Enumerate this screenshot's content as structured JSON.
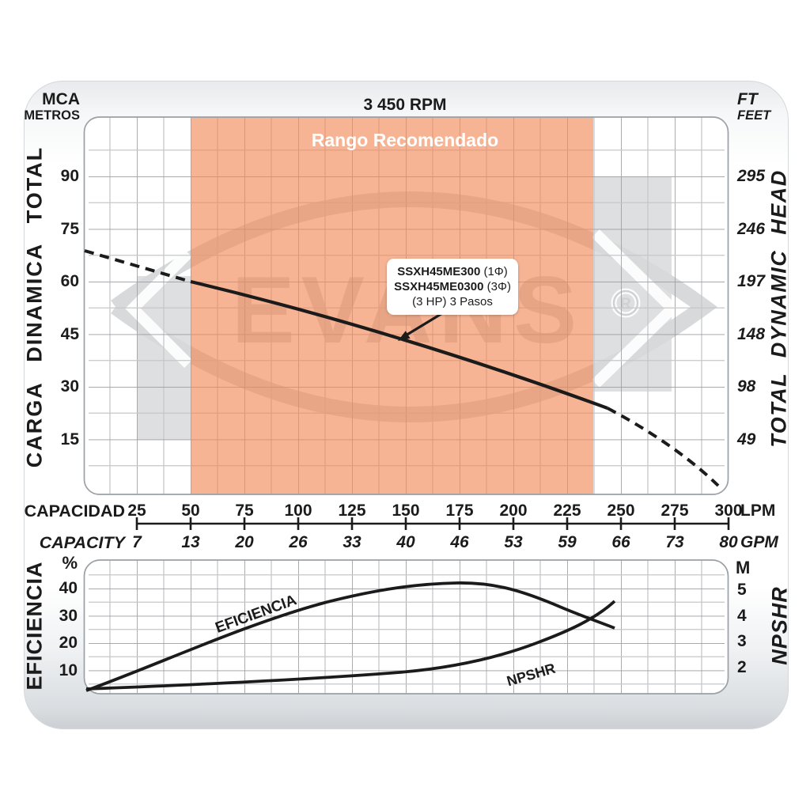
{
  "panel": {
    "speed_label": "3 450 RPM"
  },
  "watermark": {
    "text": "EVANS",
    "reg": "R"
  },
  "top_chart": {
    "unit_top_left_1": "MCA",
    "unit_top_left_2": "METROS",
    "unit_top_right_1": "FT",
    "unit_top_right_2": "FEET",
    "axis_left_label": "CARGA DINAMICA TOTAL",
    "axis_right_label": "TOTAL DYNAMIC HEAD",
    "recommended_band_label": "Rango Recomendado",
    "y_left_labels": [
      "90",
      "75",
      "60",
      "45",
      "30",
      "15"
    ],
    "y_right_labels": [
      "295",
      "246",
      "197",
      "148",
      "98",
      "49"
    ],
    "model_box": {
      "line1_model": "SSXH45ME300",
      "line1_suffix": " (1Φ)",
      "line2_model": "SSXH45ME0300",
      "line2_suffix": " (3Φ)",
      "line3": "(3 HP) 3 Pasos"
    }
  },
  "x_axis": {
    "label_upper": "CAPACIDAD",
    "label_lower": "CAPACITY",
    "unit_upper": "LPM",
    "unit_lower": "GPM",
    "lpm_labels": [
      "25",
      "50",
      "75",
      "100",
      "125",
      "150",
      "175",
      "200",
      "225",
      "250",
      "275",
      "300"
    ],
    "gpm_labels": [
      "7",
      "13",
      "20",
      "26",
      "33",
      "40",
      "46",
      "53",
      "59",
      "66",
      "73",
      "80"
    ]
  },
  "bottom_chart": {
    "unit_left": "%",
    "unit_right": "M",
    "axis_left_label": "EFICIENCIA",
    "axis_right_label": "NPSHR",
    "y_left_labels": [
      "40",
      "30",
      "20",
      "10"
    ],
    "y_right_labels": [
      "5",
      "4",
      "3",
      "2"
    ],
    "efficiency_curve_label": "EFICIENCIA",
    "npshr_curve_label": "NPSHR"
  },
  "colors": {
    "recommended_band": "#F7B899",
    "band_paint_base": "#F28955",
    "gray_zone": "#DEDFE1",
    "curve": "#1B1B1B",
    "grid_major": "#9B9EA3",
    "grid_minor": "#C6C7CA",
    "band_label_text": "#FFFFFF"
  },
  "chart_data": [
    {
      "id": "head_curve",
      "type": "line",
      "title": "3 450 RPM",
      "x_axis": {
        "label": [
          "CAPACIDAD",
          "CAPACITY"
        ],
        "units": [
          "LPM",
          "GPM"
        ],
        "lpm_ticks": [
          25,
          50,
          75,
          100,
          125,
          150,
          175,
          200,
          225,
          250,
          275,
          300
        ],
        "gpm_ticks": [
          7,
          13,
          20,
          26,
          33,
          40,
          46,
          53,
          59,
          66,
          73,
          80
        ],
        "range_lpm": [
          0,
          305
        ]
      },
      "y_axis": {
        "label": [
          "CARGA DINAMICA TOTAL",
          "TOTAL DYNAMIC HEAD"
        ],
        "units": [
          "MCA METROS",
          "FT FEET"
        ],
        "m_ticks": [
          90,
          75,
          60,
          45,
          30,
          15
        ],
        "ft_ticks": [
          295,
          246,
          197,
          148,
          98,
          49
        ],
        "range_m": [
          0,
          105
        ]
      },
      "recommended_range_lpm": [
        50,
        237
      ],
      "solid_range_lpm": [
        50,
        240
      ],
      "dashed_extrapolation": true,
      "points_lpm_vs_m": [
        [
          0,
          69
        ],
        [
          25,
          64
        ],
        [
          50,
          60
        ],
        [
          75,
          56
        ],
        [
          100,
          52
        ],
        [
          125,
          47.5
        ],
        [
          150,
          43.5
        ],
        [
          175,
          39
        ],
        [
          200,
          34.5
        ],
        [
          225,
          29
        ],
        [
          240,
          26
        ],
        [
          250,
          23
        ],
        [
          275,
          14
        ],
        [
          295,
          3
        ]
      ],
      "models": [
        "SSXH45ME300 (1Φ)",
        "SSXH45ME0300 (3Φ)"
      ],
      "power_stages": "(3 HP) 3 Pasos",
      "grid": true,
      "legend_position": "none"
    },
    {
      "id": "efficiency",
      "type": "line",
      "label": "EFICIENCIA",
      "y_units": "%",
      "y_ticks": [
        40,
        30,
        20,
        10
      ],
      "points_lpm_vs_pct": [
        [
          0,
          0
        ],
        [
          25,
          10
        ],
        [
          50,
          16
        ],
        [
          75,
          24
        ],
        [
          100,
          31.5
        ],
        [
          125,
          37
        ],
        [
          150,
          41
        ],
        [
          175,
          42
        ],
        [
          200,
          40
        ],
        [
          225,
          33
        ],
        [
          245,
          26
        ]
      ]
    },
    {
      "id": "npshr",
      "type": "line",
      "label": "NPSHR",
      "y_units": "M",
      "y_ticks": [
        5,
        4,
        3,
        2
      ],
      "points_lpm_vs_m": [
        [
          0,
          1.3
        ],
        [
          50,
          1.5
        ],
        [
          100,
          1.7
        ],
        [
          150,
          1.9
        ],
        [
          175,
          2.2
        ],
        [
          200,
          2.6
        ],
        [
          225,
          3.4
        ],
        [
          245,
          4.5
        ]
      ]
    }
  ]
}
